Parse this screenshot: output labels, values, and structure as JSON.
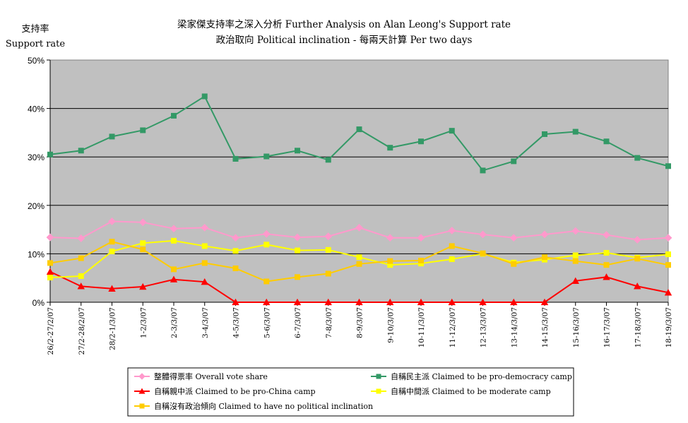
{
  "chart_data": {
    "type": "line",
    "title_line1": "梁家傑支持率之深入分析 Further Analysis on Alan Leong's Support rate",
    "title_line2": "政治取向 Political inclination - 每兩天計算 Per two days",
    "ylabel_zh": "支持率",
    "ylabel_en": "Support rate",
    "ylim": [
      0,
      50
    ],
    "yticks": [
      "0%",
      "10%",
      "20%",
      "30%",
      "40%",
      "50%"
    ],
    "grid": true,
    "plot_background": "#c0c0c0",
    "legend_position": "bottom",
    "categories": [
      "26/2-27/2/07",
      "27/2-28/2/07",
      "28/2-1/3/07",
      "1-2/3/07",
      "2-3/3/07",
      "3-4/3/07",
      "4-5/3/07",
      "5-6/3/07",
      "6-7/3/07",
      "7-8/3/07",
      "8-9/3/07",
      "9-10/3/07",
      "10-11/3/07",
      "11-12/3/07",
      "12-13/3/07",
      "13-14/3/07",
      "14-15/3/07",
      "15-16/3/07",
      "16-17/3/07",
      "17-18/3/07",
      "18-19/3/07"
    ],
    "series": [
      {
        "name": "整體得票率 Overall vote share",
        "color": "#ff99cc",
        "marker": "diamond",
        "values": [
          13.4,
          13.2,
          16.7,
          16.5,
          15.2,
          15.4,
          13.3,
          14.1,
          13.4,
          13.6,
          15.4,
          13.3,
          13.3,
          14.8,
          14.0,
          13.3,
          14.0,
          14.7,
          13.9,
          12.9,
          13.3
        ]
      },
      {
        "name": "自稱民主派 Claimed to be pro-democracy camp",
        "color": "#339966",
        "marker": "square",
        "values": [
          30.5,
          31.3,
          34.2,
          35.5,
          38.5,
          42.5,
          29.6,
          30.1,
          31.3,
          29.4,
          35.7,
          31.9,
          33.2,
          35.4,
          27.2,
          29.1,
          34.7,
          35.2,
          33.2,
          29.8,
          28.1
        ]
      },
      {
        "name": "自稱親中派 Claimed to be pro-China camp",
        "color": "#ff0000",
        "marker": "triangle",
        "values": [
          6.3,
          3.3,
          2.8,
          3.2,
          4.7,
          4.2,
          0,
          0,
          0,
          0,
          0,
          0,
          0,
          0,
          0,
          0,
          0,
          4.4,
          5.2,
          3.3,
          2.0
        ]
      },
      {
        "name": "自稱中間派 Claimed to be moderate camp",
        "color": "#ffff00",
        "marker": "square",
        "values": [
          5.1,
          5.4,
          10.5,
          12.2,
          12.7,
          11.6,
          10.6,
          11.9,
          10.7,
          10.8,
          9.3,
          7.7,
          8.0,
          8.9,
          10.0,
          8.2,
          8.8,
          9.7,
          10.2,
          9.2,
          9.9
        ]
      },
      {
        "name": "自稱沒有政治傾向 Claimed to have no political inclination",
        "color": "#ffcc00",
        "marker": "square",
        "values": [
          8.1,
          9.1,
          12.5,
          10.9,
          6.8,
          8.1,
          7.0,
          4.3,
          5.2,
          5.9,
          7.9,
          8.5,
          8.6,
          11.6,
          10.1,
          7.9,
          9.3,
          8.5,
          7.7,
          9.0,
          7.7
        ]
      }
    ]
  }
}
